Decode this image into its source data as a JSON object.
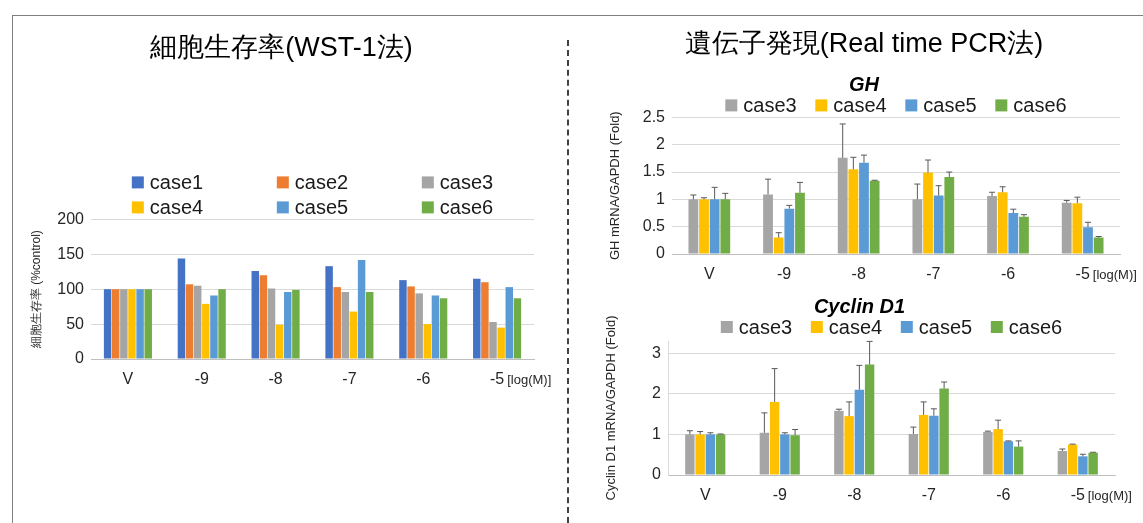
{
  "chart_data": [
    {
      "type": "bar",
      "title": "細胞生存率(WST-1法)",
      "xlabel": "[log(M)]",
      "ylabel": "細胞生存率 (%control)",
      "categories": [
        "V",
        "-9",
        "-8",
        "-7",
        "-6",
        "-5"
      ],
      "series": [
        {
          "name": "case1",
          "color": "#4472c4",
          "values": [
            100,
            144,
            126,
            133,
            113,
            115
          ]
        },
        {
          "name": "case2",
          "color": "#ed7d31",
          "values": [
            100,
            107,
            120,
            103,
            104,
            110
          ]
        },
        {
          "name": "case3",
          "color": "#a5a5a5",
          "values": [
            100,
            105,
            101,
            96,
            94,
            53
          ]
        },
        {
          "name": "case4",
          "color": "#ffc000",
          "values": [
            100,
            79,
            49,
            68,
            50,
            45
          ]
        },
        {
          "name": "case5",
          "color": "#5b9bd5",
          "values": [
            100,
            91,
            96,
            142,
            91,
            103
          ]
        },
        {
          "name": "case6",
          "color": "#70ad47",
          "values": [
            100,
            100,
            99,
            96,
            87,
            87
          ]
        }
      ],
      "ylim": [
        0,
        200
      ],
      "yticks": [
        0,
        50,
        100,
        150,
        200
      ],
      "grid": "y",
      "legend": "top"
    },
    {
      "type": "bar",
      "title": "遺伝子発現(Real time PCR法)",
      "subtitle": "GH",
      "xlabel": "[log(M)]",
      "ylabel": "GH mRNA/GAPDH (Fold)",
      "categories": [
        "V",
        "-9",
        "-8",
        "-7",
        "-6",
        "-5"
      ],
      "series": [
        {
          "name": "case3",
          "color": "#a5a5a5",
          "values": [
            1,
            1.09,
            1.76,
            1.0,
            1.06,
            0.94
          ],
          "errors": [
            [
              1,
              1.08
            ],
            [
              1.09,
              1.37
            ],
            [
              1.76,
              2.38
            ],
            [
              1.0,
              1.28
            ],
            [
              1.06,
              1.13
            ],
            [
              0.94,
              0.98
            ]
          ]
        },
        {
          "name": "case4",
          "color": "#ffc000",
          "values": [
            1,
            0.3,
            1.55,
            1.49,
            1.13,
            0.93
          ],
          "errors": [
            [
              1,
              1.03
            ],
            [
              0.3,
              0.39
            ],
            [
              1.55,
              1.77
            ],
            [
              1.49,
              1.72
            ],
            [
              1.13,
              1.23
            ],
            [
              0.93,
              1.04
            ]
          ]
        },
        {
          "name": "case5",
          "color": "#5b9bd5",
          "values": [
            1,
            0.83,
            1.67,
            1.07,
            0.75,
            0.49
          ],
          "errors": [
            [
              1,
              1.22
            ],
            [
              0.83,
              0.89
            ],
            [
              1.67,
              1.81
            ],
            [
              1.07,
              1.25
            ],
            [
              0.75,
              0.82
            ],
            [
              0.49,
              0.58
            ]
          ]
        },
        {
          "name": "case6",
          "color": "#70ad47",
          "values": [
            1,
            1.12,
            1.34,
            1.41,
            0.68,
            0.3
          ],
          "errors": [
            [
              1,
              1.11
            ],
            [
              1.12,
              1.31
            ],
            [
              1.34,
              1.35
            ],
            [
              1.41,
              1.5
            ],
            [
              0.68,
              0.72
            ],
            [
              0.3,
              0.32
            ]
          ]
        }
      ],
      "ylim": [
        0,
        2.5
      ],
      "yticks": [
        0,
        0.5,
        1,
        1.5,
        2,
        2.5
      ],
      "grid": "y",
      "legend": "top"
    },
    {
      "type": "bar",
      "title": "Cyclin D1",
      "xlabel": "[log(M)]",
      "ylabel": "Cyclin D1 mRNA/GAPDH (Fold)",
      "categories": [
        "V",
        "-9",
        "-8",
        "-7",
        "-6",
        "-5"
      ],
      "series": [
        {
          "name": "case3",
          "color": "#a5a5a5",
          "values": [
            1,
            1.04,
            1.58,
            1.01,
            1.06,
            0.59
          ],
          "errors": [
            [
              1,
              1.09
            ],
            [
              1.04,
              1.53
            ],
            [
              1.58,
              1.62
            ],
            [
              1.01,
              1.18
            ],
            [
              1.06,
              1.08
            ],
            [
              0.59,
              0.64
            ]
          ]
        },
        {
          "name": "case4",
          "color": "#ffc000",
          "values": [
            1,
            1.8,
            1.45,
            1.48,
            1.13,
            0.75
          ],
          "errors": [
            [
              1,
              1.07
            ],
            [
              1.8,
              2.62
            ],
            [
              1.45,
              1.8
            ],
            [
              1.48,
              1.8
            ],
            [
              1.13,
              1.35
            ],
            [
              0.75,
              0.76
            ]
          ]
        },
        {
          "name": "case5",
          "color": "#5b9bd5",
          "values": [
            1,
            1.0,
            2.1,
            1.46,
            0.83,
            0.46
          ],
          "errors": [
            [
              1,
              1.04
            ],
            [
              1.0,
              1.04
            ],
            [
              2.1,
              2.7
            ],
            [
              1.46,
              1.63
            ],
            [
              0.83,
              0.84
            ],
            [
              0.46,
              0.51
            ]
          ]
        },
        {
          "name": "case6",
          "color": "#70ad47",
          "values": [
            1,
            0.98,
            2.72,
            2.13,
            0.7,
            0.55
          ],
          "errors": [
            [
              1,
              1.01
            ],
            [
              0.98,
              1.12
            ],
            [
              2.72,
              3.29
            ],
            [
              2.13,
              2.29
            ],
            [
              0.7,
              0.84
            ],
            [
              0.55,
              0.56
            ]
          ]
        }
      ],
      "ylim": [
        0,
        3.3
      ],
      "yticks": [
        0,
        1,
        2,
        3
      ],
      "grid": "y",
      "legend": "top"
    }
  ]
}
